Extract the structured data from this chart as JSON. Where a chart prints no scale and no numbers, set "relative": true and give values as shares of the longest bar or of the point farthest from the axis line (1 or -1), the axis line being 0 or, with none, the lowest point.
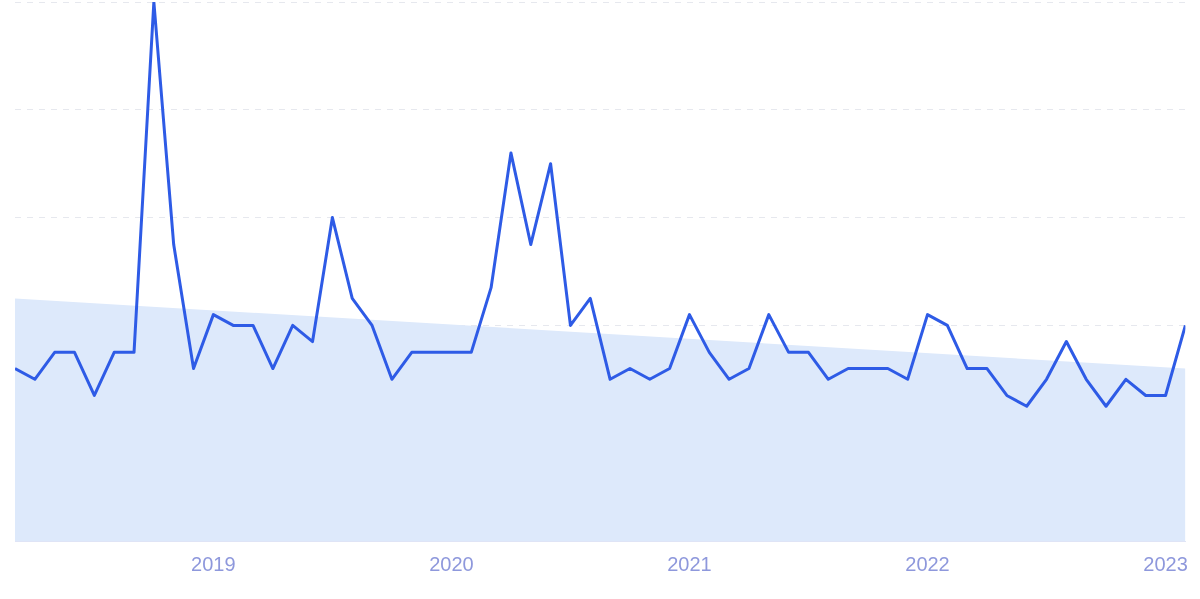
{
  "chart_data": {
    "type": "line",
    "relative": true,
    "grid": "y",
    "legend": false,
    "tick_labels": "x",
    "x": [
      "2018-03",
      "2018-04",
      "2018-05",
      "2018-06",
      "2018-07",
      "2018-08",
      "2018-09",
      "2018-10",
      "2018-11",
      "2018-12",
      "2019-01",
      "2019-02",
      "2019-03",
      "2019-04",
      "2019-05",
      "2019-06",
      "2019-07",
      "2019-08",
      "2019-09",
      "2019-10",
      "2019-11",
      "2019-12",
      "2020-01",
      "2020-02",
      "2020-03",
      "2020-04",
      "2020-05",
      "2020-06",
      "2020-07",
      "2020-08",
      "2020-09",
      "2020-10",
      "2020-11",
      "2020-12",
      "2021-01",
      "2021-02",
      "2021-03",
      "2021-04",
      "2021-05",
      "2021-06",
      "2021-07",
      "2021-08",
      "2021-09",
      "2021-10",
      "2021-11",
      "2021-12",
      "2022-01",
      "2022-02",
      "2022-03",
      "2022-04",
      "2022-05",
      "2022-06",
      "2022-07",
      "2022-08",
      "2022-09",
      "2022-10",
      "2022-11",
      "2022-12",
      "2023-01",
      "2023-02"
    ],
    "xlim": [
      "2018-03",
      "2023-02"
    ],
    "xticks": [
      {
        "value": "2019-01",
        "label": "2019"
      },
      {
        "value": "2020-01",
        "label": "2020"
      },
      {
        "value": "2021-01",
        "label": "2021"
      },
      {
        "value": "2022-01",
        "label": "2022"
      },
      {
        "value": "2023-01",
        "label": "2023"
      }
    ],
    "marker": "none",
    "series": [
      {
        "type": "area",
        "color": "#dde9fb",
        "x": [
          "2018-03",
          "2023-02"
        ],
        "values": [
          0.45,
          0.32
        ]
      },
      {
        "type": "line",
        "color": "#2e5be6",
        "values": [
          0.32,
          0.3,
          0.35,
          0.35,
          0.27,
          0.35,
          0.35,
          1,
          0.55,
          0.32,
          0.42,
          0.4,
          0.4,
          0.32,
          0.4,
          0.37,
          0.6,
          0.45,
          0.4,
          0.3,
          0.35,
          0.35,
          0.35,
          0.35,
          0.47,
          0.72,
          0.55,
          0.7,
          0.4,
          0.45,
          0.3,
          0.32,
          0.3,
          0.32,
          0.42,
          0.35,
          0.3,
          0.32,
          0.42,
          0.35,
          0.35,
          0.3,
          0.32,
          0.32,
          0.32,
          0.3,
          0.42,
          0.4,
          0.32,
          0.32,
          0.27,
          0.25,
          0.3,
          0.37,
          0.3,
          0.25,
          0.3,
          0.27,
          0.27,
          0.4
        ]
      }
    ]
  }
}
